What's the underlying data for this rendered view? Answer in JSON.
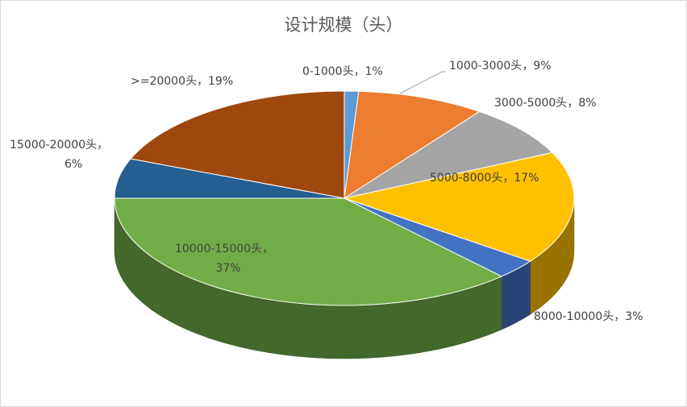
{
  "chart_data": {
    "type": "pie3d",
    "title": "设计规模（头）",
    "categories": [
      "0-1000头",
      "1000-3000头",
      "3000-5000头",
      "5000-8000头",
      "8000-10000头",
      "10000-15000头",
      "15000-20000头",
      ">=20000头"
    ],
    "values": [
      1,
      9,
      8,
      17,
      3,
      37,
      6,
      19
    ],
    "value_labels": [
      "1%",
      "9%",
      "8%",
      "17%",
      "3%",
      "37%",
      "6%",
      "19%"
    ],
    "label_separator": "，",
    "colors": [
      "#5b9bd5",
      "#ed7d31",
      "#a5a5a5",
      "#ffc000",
      "#4472c4",
      "#70ad47",
      "#255e91",
      "#9e480e"
    ]
  }
}
